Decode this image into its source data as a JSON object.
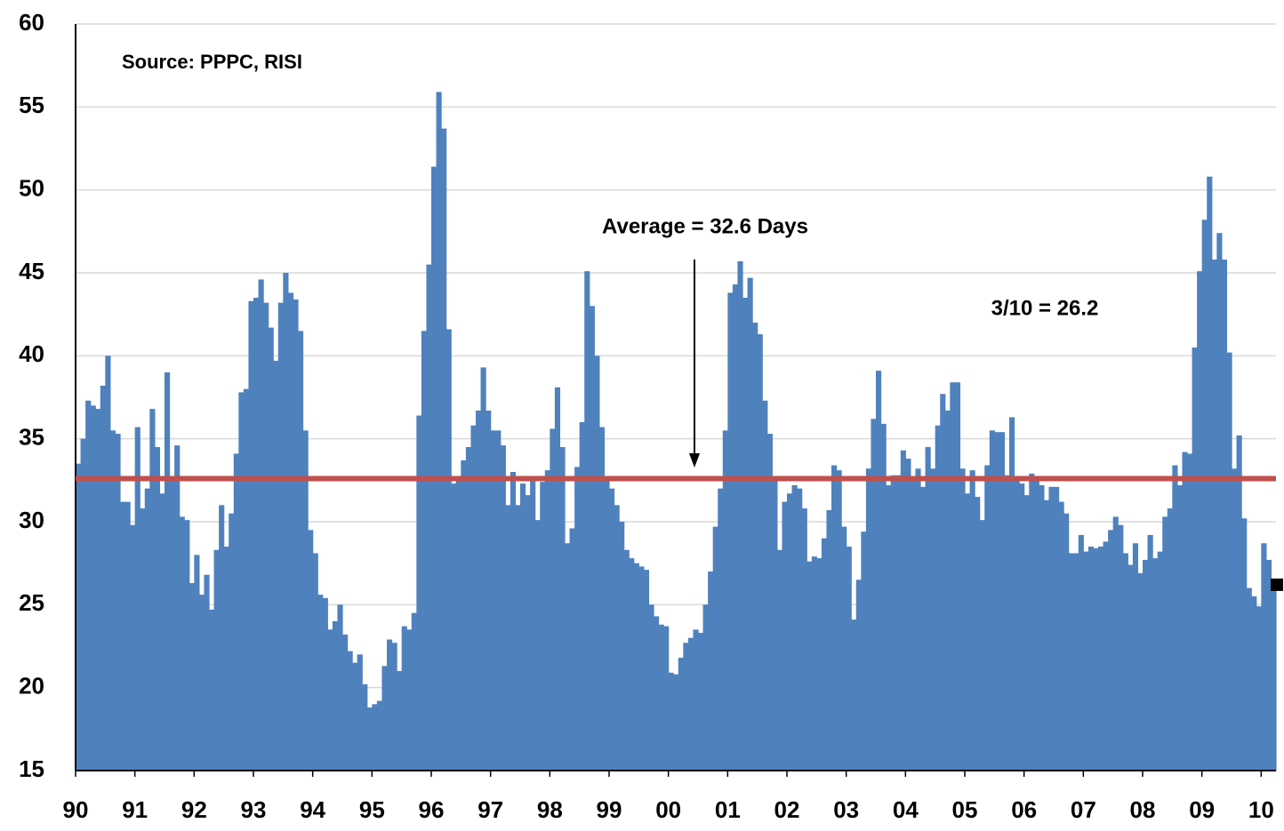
{
  "chart_data": {
    "type": "bar",
    "annotations": [
      "Source:  PPPC, RISI",
      "Average = 32.6 Days",
      "3/10 = 26.2"
    ],
    "average": 32.6,
    "categories": [
      "90",
      null,
      null,
      null,
      null,
      null,
      null,
      null,
      null,
      null,
      null,
      null,
      "91",
      null,
      null,
      null,
      null,
      null,
      null,
      null,
      null,
      null,
      null,
      null,
      "92",
      null,
      null,
      null,
      null,
      null,
      null,
      null,
      null,
      null,
      null,
      null,
      "93",
      null,
      null,
      null,
      null,
      null,
      null,
      null,
      null,
      null,
      null,
      null,
      "94",
      null,
      null,
      null,
      null,
      null,
      null,
      null,
      null,
      null,
      null,
      null,
      "95",
      null,
      null,
      null,
      null,
      null,
      null,
      null,
      null,
      null,
      null,
      null,
      "96",
      null,
      null,
      null,
      null,
      null,
      null,
      null,
      null,
      null,
      null,
      null,
      "97",
      null,
      null,
      null,
      null,
      null,
      null,
      null,
      null,
      null,
      null,
      null,
      "98",
      null,
      null,
      null,
      null,
      null,
      null,
      null,
      null,
      null,
      null,
      null,
      "99",
      null,
      null,
      null,
      null,
      null,
      null,
      null,
      null,
      null,
      null,
      null,
      "00",
      null,
      null,
      null,
      null,
      null,
      null,
      null,
      null,
      null,
      null,
      null,
      "01",
      null,
      null,
      null,
      null,
      null,
      null,
      null,
      null,
      null,
      null,
      null,
      "02",
      null,
      null,
      null,
      null,
      null,
      null,
      null,
      null,
      null,
      null,
      null,
      "03",
      null,
      null,
      null,
      null,
      null,
      null,
      null,
      null,
      null,
      null,
      null,
      "04",
      null,
      null,
      null,
      null,
      null,
      null,
      null,
      null,
      null,
      null,
      null,
      "05",
      null,
      null,
      null,
      null,
      null,
      null,
      null,
      null,
      null,
      null,
      null,
      "06",
      null,
      null,
      null,
      null,
      null,
      null,
      null,
      null,
      null,
      null,
      null,
      "07",
      null,
      null,
      null,
      null,
      null,
      null,
      null,
      null,
      null,
      null,
      null,
      "08",
      null,
      null,
      null,
      null,
      null,
      null,
      null,
      null,
      null,
      null,
      null,
      "09",
      null,
      null,
      null,
      null,
      null,
      null,
      null,
      null,
      null,
      null,
      null,
      "10",
      null,
      null
    ],
    "values": [
      33.5,
      35,
      37.3,
      37,
      36.8,
      38.2,
      40,
      35.5,
      35.3,
      31.2,
      31.2,
      29.8,
      35.7,
      30.8,
      32,
      36.8,
      34.5,
      31.7,
      39,
      32.5,
      34.6,
      30.3,
      30.1,
      26.3,
      28,
      25.6,
      26.8,
      24.7,
      28.3,
      31,
      28.5,
      30.5,
      34.1,
      37.8,
      38,
      43.3,
      43.5,
      44.6,
      43.2,
      41.7,
      39.7,
      43.2,
      45,
      43.8,
      43.4,
      41.5,
      35.5,
      29.5,
      28.1,
      25.6,
      25.4,
      23.5,
      24,
      25,
      23.2,
      22.2,
      21.5,
      22,
      20.2,
      18.8,
      19,
      19.2,
      21.3,
      22.9,
      22.7,
      21,
      23.7,
      23.5,
      24.5,
      36.4,
      41.5,
      45.5,
      51.4,
      55.9,
      53.7,
      41.6,
      32.3,
      32.5,
      33.7,
      34.5,
      35.8,
      36.7,
      39.3,
      36.7,
      35.5,
      35.5,
      34.6,
      31,
      33,
      31,
      32.3,
      31.6,
      32.6,
      30.1,
      32.4,
      33.1,
      35.6,
      38.1,
      34.5,
      28.7,
      29.6,
      33.3,
      36,
      45.1,
      43,
      40,
      35.7,
      32.5,
      32,
      31,
      30,
      28.3,
      27.8,
      27.5,
      27.3,
      27.1,
      25,
      24.3,
      23.8,
      23.7,
      20.9,
      20.8,
      21.8,
      22.7,
      23,
      23.5,
      23.3,
      25,
      27,
      29.7,
      32,
      35.5,
      43.8,
      44.3,
      45.7,
      43.5,
      44.7,
      42,
      41.3,
      37.3,
      35.3,
      32.7,
      28.3,
      31.2,
      31.7,
      32.2,
      32,
      30.8,
      27.6,
      27.9,
      27.8,
      29,
      30.7,
      33.4,
      33.1,
      29.7,
      28.5,
      24.1,
      26.5,
      29.4,
      33.2,
      36.2,
      39.1,
      35.9,
      32.2,
      32.8,
      32.8,
      34.3,
      33.8,
      32.5,
      33.2,
      32.1,
      34.5,
      33.2,
      35.8,
      37.7,
      36.7,
      38.4,
      38.4,
      33.2,
      31.7,
      33.1,
      31.5,
      30.1,
      33.4,
      35.5,
      35.4,
      35.4,
      32.8,
      36.3,
      32.6,
      32.3,
      31.6,
      32.9,
      32.7,
      32.2,
      31.3,
      32.1,
      32.1,
      31.2,
      30.5,
      28.1,
      28.1,
      29.2,
      28.2,
      28.5,
      28.4,
      28.5,
      28.8,
      29.5,
      30.3,
      29.8,
      28.1,
      27.4,
      28.7,
      26.9,
      27.7,
      29.2,
      27.8,
      28.2,
      30.3,
      30.8,
      33.4,
      32.2,
      34.2,
      34.1,
      40.5,
      45.1,
      48.2,
      50.8,
      45.8,
      47.4,
      45.8,
      40.2,
      33.2,
      35.2,
      30.2,
      26,
      25.5,
      24.9,
      28.7,
      27.7,
      26.2
    ],
    "color": "#4f81bd",
    "average_color": "#c0504d",
    "ylim": [
      15,
      60
    ],
    "yticks": [
      15,
      20,
      25,
      30,
      35,
      40,
      45,
      50,
      55,
      60
    ],
    "grid": true
  }
}
